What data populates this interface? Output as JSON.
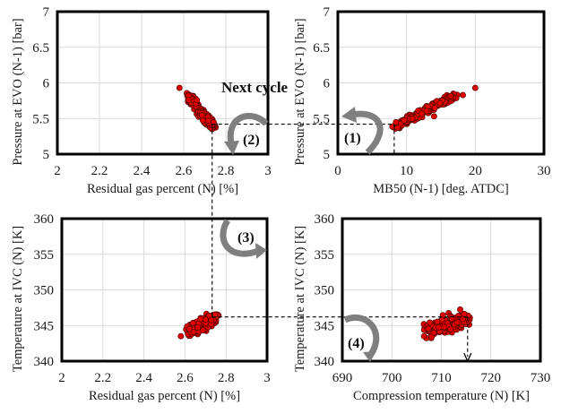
{
  "figure": {
    "annotation_next_cycle": "Next cycle",
    "steps": [
      "(1)",
      "(2)",
      "(3)",
      "(4)"
    ]
  },
  "chart_data": [
    {
      "id": "top-left",
      "type": "scatter",
      "title": "",
      "xlabel": "Residual gas percent (N)  [%]",
      "ylabel": "Pressure at EVO (N-1) [bar]",
      "xlim": [
        2,
        3
      ],
      "ylim": [
        5,
        7
      ],
      "xticks": [
        2,
        2.2,
        2.4,
        2.6,
        2.8,
        3
      ],
      "yticks": [
        5,
        5.5,
        6,
        6.5,
        7
      ],
      "xtick_labels": [
        "2",
        "2.2",
        "2.4",
        "2.6",
        "2.8",
        "3"
      ],
      "ytick_labels": [
        "5",
        "5.5",
        "6",
        "6.5",
        "7"
      ],
      "grid": true,
      "marker_color": "#e00000",
      "cluster": {
        "description": "negative linear trend",
        "x_range": [
          2.58,
          2.74
        ],
        "y_range": [
          5.38,
          5.94
        ],
        "outlier": [
          2.58,
          5.93
        ]
      },
      "guide_point": [
        2.735,
        5.42
      ]
    },
    {
      "id": "top-right",
      "type": "scatter",
      "title": "",
      "xlabel": "MB50 (N-1)  [deg. ATDC]",
      "ylabel": "Pressure at EVO (N-1) [bar]",
      "xlim": [
        0,
        30
      ],
      "ylim": [
        5,
        7
      ],
      "xticks": [
        0,
        10,
        20,
        30
      ],
      "yticks": [
        5,
        5.5,
        6,
        6.5,
        7
      ],
      "xtick_labels": [
        "0",
        "10",
        "20",
        "30"
      ],
      "ytick_labels": [
        "5",
        "5.5",
        "6",
        "6.5",
        "7"
      ],
      "grid": true,
      "marker_color": "#e00000",
      "cluster": {
        "description": "positive linear trend",
        "x_range": [
          8.2,
          17
        ],
        "y_range": [
          5.38,
          5.82
        ],
        "outliers": [
          [
            18.2,
            5.83
          ],
          [
            20,
            5.93
          ],
          [
            14,
            5.53
          ]
        ]
      },
      "guide_point": [
        8.2,
        5.42
      ]
    },
    {
      "id": "bottom-left",
      "type": "scatter",
      "title": "",
      "xlabel": "Residual gas percent (N) [%]",
      "ylabel": "Temperature at IVC (N)  [K]",
      "xlim": [
        2,
        3
      ],
      "ylim": [
        340,
        360
      ],
      "xticks": [
        2,
        2.2,
        2.4,
        2.6,
        2.8,
        3
      ],
      "yticks": [
        340,
        345,
        350,
        355,
        360
      ],
      "xtick_labels": [
        "2",
        "2.2",
        "2.4",
        "2.6",
        "2.8",
        "3"
      ],
      "ytick_labels": [
        "340",
        "345",
        "350",
        "355",
        "360"
      ],
      "grid": true,
      "marker_color": "#e00000",
      "cluster": {
        "description": "positive linear trend",
        "x_range": [
          2.58,
          2.75
        ],
        "y_range": [
          343.5,
          346.5
        ],
        "outlier": [
          2.58,
          343.5
        ]
      },
      "guide_point": [
        2.735,
        346.2
      ]
    },
    {
      "id": "bottom-right",
      "type": "scatter",
      "title": "",
      "xlabel": "Compression temperature (N)  [K]",
      "ylabel": "Temperature at IVC (N)  [K]",
      "xlim": [
        690,
        730
      ],
      "ylim": [
        340,
        360
      ],
      "xticks": [
        690,
        700,
        710,
        720,
        730
      ],
      "yticks": [
        340,
        345,
        350,
        355,
        360
      ],
      "xtick_labels": [
        "690",
        "700",
        "710",
        "720",
        "730"
      ],
      "ytick_labels": [
        "340",
        "345",
        "350",
        "355",
        "360"
      ],
      "grid": true,
      "marker_color": "#e00000",
      "cluster": {
        "description": "elliptical positive cluster",
        "x_range": [
          706.5,
          715.5
        ],
        "y_range": [
          343.5,
          346.5
        ],
        "outlier": [
          706.5,
          343.5
        ]
      },
      "guide_point": [
        715.3,
        346.2
      ]
    }
  ]
}
